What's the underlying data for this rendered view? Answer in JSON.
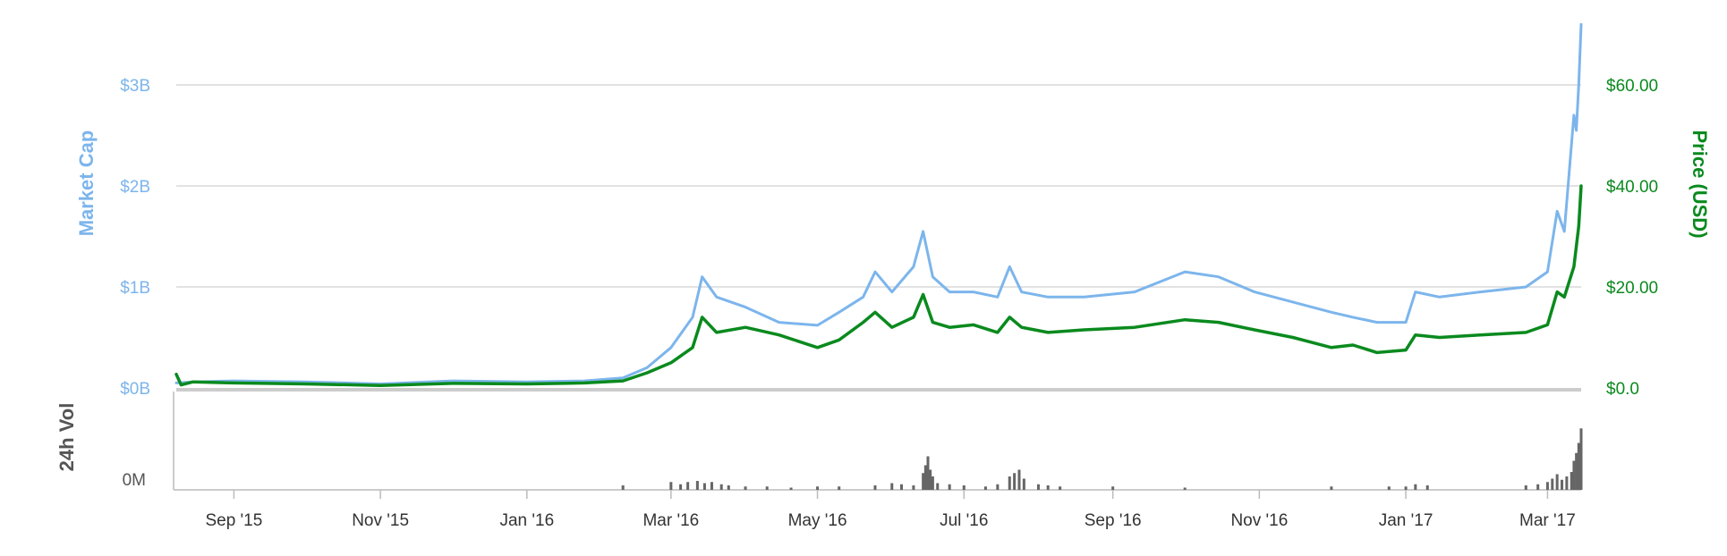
{
  "chart_data": [
    {
      "type": "line",
      "title": "",
      "xlabel": "",
      "x_tick_labels": [
        "Sep '15",
        "Nov '15",
        "Jan '16",
        "Mar '16",
        "May '16",
        "Jul '16",
        "Sep '16",
        "Nov '16",
        "Jan '17",
        "Mar '17"
      ],
      "left_axis": {
        "label": "Market Cap",
        "tick_labels": [
          "$0B",
          "$1B",
          "$2B",
          "$3B"
        ],
        "ylim": [
          0,
          3
        ],
        "unit": "B"
      },
      "right_axis": {
        "label": "Price (USD)",
        "tick_labels": [
          "$0.0",
          "$20.00",
          "$40.00",
          "$60.00"
        ],
        "ylim": [
          0,
          60
        ]
      },
      "grid": true,
      "series": [
        {
          "name": "Market Cap",
          "axis": "left",
          "color": "#7cb5ec",
          "x": [
            "2015-08-08",
            "2015-08-15",
            "2015-09-01",
            "2015-10-01",
            "2015-11-01",
            "2015-12-01",
            "2016-01-01",
            "2016-01-25",
            "2016-02-10",
            "2016-02-20",
            "2016-03-01",
            "2016-03-10",
            "2016-03-14",
            "2016-03-20",
            "2016-04-01",
            "2016-04-15",
            "2016-05-01",
            "2016-05-10",
            "2016-05-20",
            "2016-05-25",
            "2016-06-01",
            "2016-06-10",
            "2016-06-14",
            "2016-06-18",
            "2016-06-25",
            "2016-07-05",
            "2016-07-15",
            "2016-07-20",
            "2016-07-25",
            "2016-08-05",
            "2016-08-20",
            "2016-09-10",
            "2016-10-01",
            "2016-10-15",
            "2016-10-30",
            "2016-11-15",
            "2016-12-01",
            "2016-12-10",
            "2016-12-20",
            "2017-01-01",
            "2017-01-05",
            "2017-01-15",
            "2017-02-01",
            "2017-02-20",
            "2017-03-01",
            "2017-03-05",
            "2017-03-08",
            "2017-03-12",
            "2017-03-13",
            "2017-03-14",
            "2017-03-15"
          ],
          "values": [
            0.05,
            0.06,
            0.07,
            0.06,
            0.04,
            0.07,
            0.06,
            0.07,
            0.1,
            0.2,
            0.4,
            0.7,
            1.1,
            0.9,
            0.8,
            0.65,
            0.62,
            0.75,
            0.9,
            1.15,
            0.95,
            1.2,
            1.55,
            1.1,
            0.95,
            0.95,
            0.9,
            1.2,
            0.95,
            0.9,
            0.9,
            0.95,
            1.15,
            1.1,
            0.95,
            0.85,
            0.75,
            0.7,
            0.65,
            0.65,
            0.95,
            0.9,
            0.95,
            1.0,
            1.15,
            1.75,
            1.55,
            2.7,
            2.55,
            3.0,
            3.6
          ]
        },
        {
          "name": "Price (USD)",
          "axis": "right",
          "color": "#0a8a1e",
          "x": [
            "2015-08-08",
            "2015-08-10",
            "2015-08-15",
            "2015-09-01",
            "2015-10-01",
            "2015-11-01",
            "2015-12-01",
            "2016-01-01",
            "2016-01-25",
            "2016-02-10",
            "2016-02-20",
            "2016-03-01",
            "2016-03-10",
            "2016-03-14",
            "2016-03-20",
            "2016-04-01",
            "2016-04-15",
            "2016-05-01",
            "2016-05-10",
            "2016-05-20",
            "2016-05-25",
            "2016-06-01",
            "2016-06-10",
            "2016-06-14",
            "2016-06-18",
            "2016-06-25",
            "2016-07-05",
            "2016-07-15",
            "2016-07-20",
            "2016-07-25",
            "2016-08-05",
            "2016-08-20",
            "2016-09-10",
            "2016-10-01",
            "2016-10-15",
            "2016-10-30",
            "2016-11-15",
            "2016-12-01",
            "2016-12-10",
            "2016-12-20",
            "2017-01-01",
            "2017-01-05",
            "2017-01-15",
            "2017-02-01",
            "2017-02-20",
            "2017-03-01",
            "2017-03-05",
            "2017-03-08",
            "2017-03-12",
            "2017-03-13",
            "2017-03-14",
            "2017-03-15"
          ],
          "values": [
            2.7,
            0.6,
            1.2,
            1.0,
            0.8,
            0.5,
            0.9,
            0.8,
            1.0,
            1.4,
            3.0,
            5.0,
            8.0,
            14.0,
            11.0,
            12.0,
            10.5,
            8.0,
            9.5,
            13.0,
            15.0,
            12.0,
            14.0,
            18.5,
            13.0,
            12.0,
            12.5,
            11.0,
            14.0,
            12.0,
            11.0,
            11.5,
            12.0,
            13.5,
            13.0,
            11.5,
            10.0,
            8.0,
            8.5,
            7.0,
            7.5,
            10.5,
            10.0,
            10.5,
            11.0,
            12.5,
            19.0,
            18.0,
            24.0,
            28.0,
            32.0,
            40.0
          ]
        }
      ]
    },
    {
      "type": "bar",
      "title": "",
      "y_label": "24h Vol",
      "y_tick_label": "0M",
      "color": "#666666",
      "note": "volume bars relative to panel height (0 to 1)",
      "x": [
        "2016-02-10",
        "2016-03-01",
        "2016-03-05",
        "2016-03-08",
        "2016-03-12",
        "2016-03-15",
        "2016-03-18",
        "2016-03-22",
        "2016-03-25",
        "2016-04-01",
        "2016-04-10",
        "2016-04-20",
        "2016-05-01",
        "2016-05-10",
        "2016-05-25",
        "2016-06-01",
        "2016-06-05",
        "2016-06-10",
        "2016-06-14",
        "2016-06-15",
        "2016-06-16",
        "2016-06-17",
        "2016-06-18",
        "2016-06-20",
        "2016-06-25",
        "2016-07-01",
        "2016-07-10",
        "2016-07-15",
        "2016-07-20",
        "2016-07-22",
        "2016-07-24",
        "2016-07-26",
        "2016-08-01",
        "2016-08-05",
        "2016-08-10",
        "2016-09-01",
        "2016-10-01",
        "2016-12-01",
        "2016-12-25",
        "2017-01-01",
        "2017-01-05",
        "2017-01-10",
        "2017-02-20",
        "2017-02-25",
        "2017-03-01",
        "2017-03-03",
        "2017-03-05",
        "2017-03-07",
        "2017-03-09",
        "2017-03-11",
        "2017-03-12",
        "2017-03-13",
        "2017-03-14",
        "2017-03-15"
      ],
      "values": [
        0.04,
        0.07,
        0.05,
        0.07,
        0.08,
        0.06,
        0.07,
        0.05,
        0.04,
        0.03,
        0.03,
        0.02,
        0.03,
        0.03,
        0.04,
        0.06,
        0.05,
        0.04,
        0.15,
        0.22,
        0.3,
        0.18,
        0.12,
        0.06,
        0.05,
        0.04,
        0.03,
        0.05,
        0.12,
        0.15,
        0.18,
        0.1,
        0.05,
        0.04,
        0.03,
        0.03,
        0.02,
        0.03,
        0.03,
        0.03,
        0.05,
        0.04,
        0.04,
        0.05,
        0.07,
        0.1,
        0.14,
        0.09,
        0.12,
        0.16,
        0.26,
        0.33,
        0.42,
        0.55
      ]
    }
  ]
}
